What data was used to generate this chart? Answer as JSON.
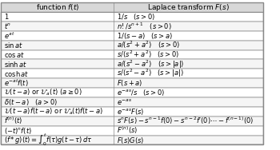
{
  "header": [
    "function $f(t)$",
    "Laplace transform $F(s)$"
  ],
  "rows": [
    [
      "$1$",
      "$1/s \\quad (s > 0)$"
    ],
    [
      "$t^n$",
      "$n!/s^{n+1} \\quad (s > 0)$"
    ],
    [
      "$e^{at}$",
      "$1/(s-a) \\quad (s > a)$"
    ],
    [
      "$\\sin at$",
      "$a/(s^2+a^2) \\quad (s > 0)$"
    ],
    [
      "$\\cos at$",
      "$s/(s^2+a^2) \\quad (s > 0)$"
    ],
    [
      "$\\sinh at$",
      "$a/(s^2-a^2) \\quad (s > |a|)$"
    ],
    [
      "$\\cosh at$",
      "$s/(s^2-a^2) \\quad (s > |a|)$"
    ],
    [
      "$e^{-at}f(t)$",
      "$F(s+a)$"
    ],
    [
      "$\\mathcal{U}(t-a)$ or $\\mathcal{U}_a(t)$ $(a \\geq 0)$",
      "$e^{-as}/s \\quad (s > 0)$"
    ],
    [
      "$\\delta(t-a) \\quad (a > 0)$",
      "$e^{-as}$"
    ],
    [
      "$\\mathcal{U}(t-a)f(t-a)$ or $\\mathcal{U}_a(t)f(t-a)$",
      "$e^{-as}F(s)$"
    ],
    [
      "$f^{(n)}(t)$",
      "$s^n F(s) - s^{n-1}f(0) - s^{n-2}f'(0) \\cdots - f^{(n-1)}(0)$"
    ],
    [
      "$(-t)^n f(t)$",
      "$F^{(n)}(s)$"
    ],
    [
      "$(f*g)(t) = \\int_0^t f(\\tau)g(t-\\tau)\\,d\\tau$",
      "$F(s)G(s)$"
    ]
  ],
  "col_split": 0.43,
  "header_bg": "#d8d8d8",
  "row_bg_even": "#ffffff",
  "row_bg_odd": "#f5f5f5",
  "border_color": "#888888",
  "text_color": "#000000",
  "fontsize": 6.0,
  "header_fontsize": 6.5
}
